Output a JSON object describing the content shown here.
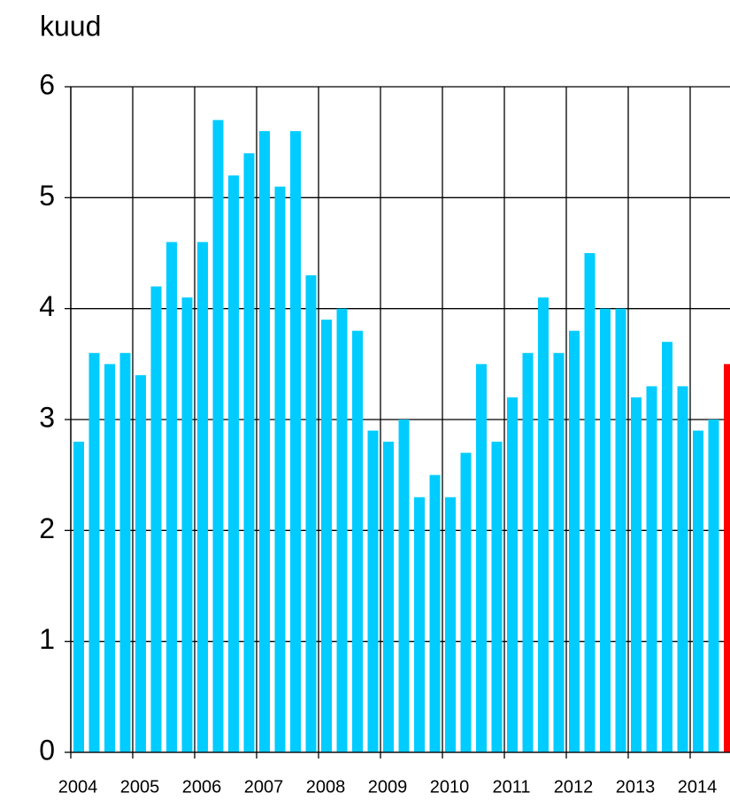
{
  "chart_data": {
    "type": "bar",
    "y_label": "kuud",
    "categories": [
      "2004",
      null,
      null,
      null,
      "2005",
      null,
      null,
      null,
      "2006",
      null,
      null,
      null,
      "2007",
      null,
      null,
      null,
      "2008",
      null,
      null,
      null,
      "2009",
      null,
      null,
      null,
      "2010",
      null,
      null,
      null,
      "2011",
      null,
      null,
      null,
      "2012",
      null,
      null,
      null,
      "2013",
      null,
      null,
      null,
      "2014",
      null,
      null
    ],
    "values": [
      2.8,
      3.6,
      3.5,
      3.6,
      3.4,
      4.2,
      4.6,
      4.1,
      4.6,
      5.7,
      5.2,
      5.4,
      5.6,
      5.1,
      5.6,
      4.3,
      3.9,
      4.0,
      3.8,
      2.9,
      2.8,
      3.0,
      2.3,
      2.5,
      2.3,
      2.7,
      3.5,
      2.8,
      3.2,
      3.6,
      4.1,
      3.6,
      3.8,
      4.5,
      4.0,
      4.0,
      3.2,
      3.3,
      3.7,
      3.3,
      2.9,
      3.0,
      3.5
    ],
    "colors": [
      "#00ccff",
      "#00ccff",
      "#00ccff",
      "#00ccff",
      "#00ccff",
      "#00ccff",
      "#00ccff",
      "#00ccff",
      "#00ccff",
      "#00ccff",
      "#00ccff",
      "#00ccff",
      "#00ccff",
      "#00ccff",
      "#00ccff",
      "#00ccff",
      "#00ccff",
      "#00ccff",
      "#00ccff",
      "#00ccff",
      "#00ccff",
      "#00ccff",
      "#00ccff",
      "#00ccff",
      "#00ccff",
      "#00ccff",
      "#00ccff",
      "#00ccff",
      "#00ccff",
      "#00ccff",
      "#00ccff",
      "#00ccff",
      "#00ccff",
      "#00ccff",
      "#00ccff",
      "#00ccff",
      "#00ccff",
      "#00ccff",
      "#00ccff",
      "#00ccff",
      "#00ccff",
      "#00ccff",
      "#ff0000"
    ],
    "ylim": [
      0,
      6
    ],
    "yticks": [
      0,
      1,
      2,
      3,
      4,
      5,
      6
    ],
    "grid": true
  }
}
